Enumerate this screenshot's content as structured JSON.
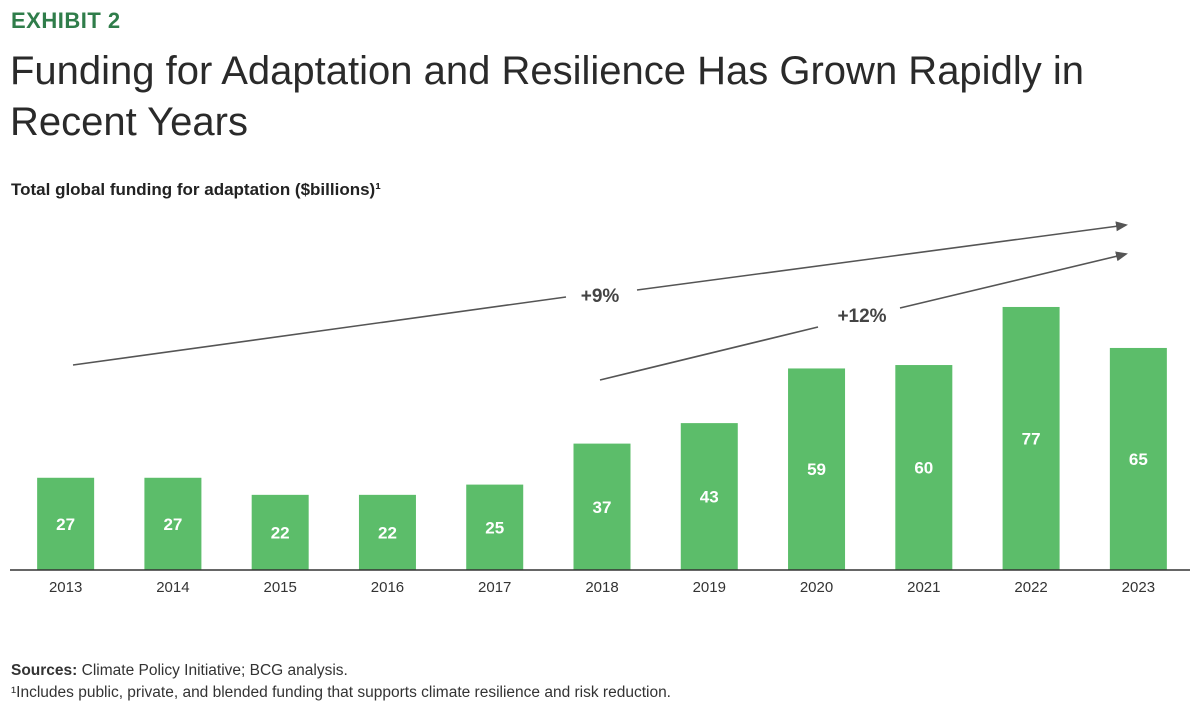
{
  "header": {
    "exhibit": "EXHIBIT 2",
    "title": "Funding for Adaptation and Resilience Has Grown Rapidly in Recent Years"
  },
  "colors": {
    "accent": "#2f7d4a",
    "bar": "#5cbd6a",
    "axis": "#333333",
    "arrow": "#555555"
  },
  "chart_data": {
    "type": "bar",
    "title": "Total global funding for adaptation ($billions)¹",
    "categories": [
      "2013",
      "2014",
      "2015",
      "2016",
      "2017",
      "2018",
      "2019",
      "2020",
      "2021",
      "2022",
      "2023"
    ],
    "values": [
      27,
      27,
      22,
      22,
      25,
      37,
      43,
      59,
      60,
      77,
      65
    ],
    "ylabel": "$billions",
    "ylim": [
      0,
      80
    ],
    "grid": false,
    "annotations": [
      {
        "label": "+9%",
        "from_year": "2013",
        "to": "beyond 2023"
      },
      {
        "label": "+12%",
        "from_year": "2018",
        "to": "beyond 2023"
      }
    ]
  },
  "footer": {
    "sources_label": "Sources:",
    "sources_text": " Climate Policy Initiative; BCG analysis.",
    "footnote": "¹Includes public, private, and blended funding that supports climate resilience and risk reduction."
  }
}
